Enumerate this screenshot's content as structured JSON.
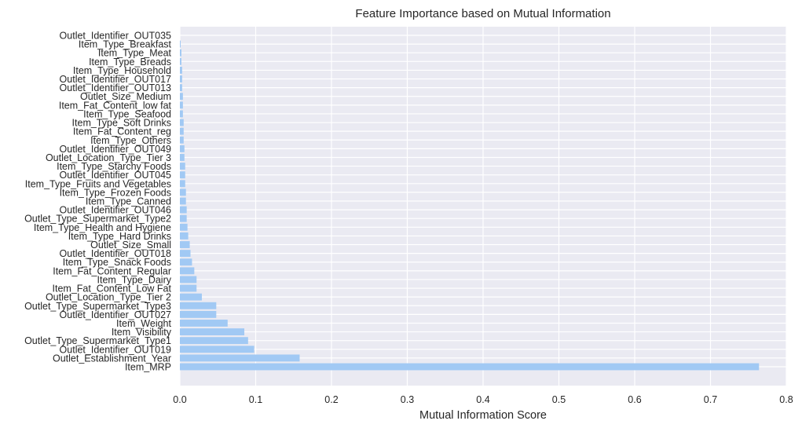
{
  "chart_data": {
    "type": "bar",
    "orientation": "horizontal",
    "title": "Feature Importance based on Mutual Information",
    "xlabel": "Mutual Information Score",
    "ylabel": "",
    "xlim": [
      0,
      0.8
    ],
    "xticks": [
      "0.0",
      "0.1",
      "0.2",
      "0.3",
      "0.4",
      "0.5",
      "0.6",
      "0.7",
      "0.8"
    ],
    "grid": true,
    "bar_color": "#a1c9f4",
    "background_color": "#eaeaf2",
    "grid_color": "#ffffff",
    "categories": [
      "Item_MRP",
      "Outlet_Establishment_Year",
      "Outlet_Identifier_OUT019",
      "Outlet_Type_Supermarket_Type1",
      "Item_Visibility",
      "Item_Weight",
      "Outlet_Identifier_OUT027",
      "Outlet_Type_Supermarket_Type3",
      "Outlet_Location_Type_Tier 2",
      "Item_Fat_Content_Low Fat",
      "Item_Type_Dairy",
      "Item_Fat_Content_Regular",
      "Item_Type_Snack Foods",
      "Outlet_Identifier_OUT018",
      "Outlet_Size_Small",
      "Item_Type_Hard Drinks",
      "Item_Type_Health and Hygiene",
      "Outlet_Type_Supermarket_Type2",
      "Outlet_Identifier_OUT046",
      "Item_Type_Canned",
      "Item_Type_Frozen Foods",
      "Item_Type_Fruits and Vegetables",
      "Outlet_Identifier_OUT045",
      "Item_Type_Starchy Foods",
      "Outlet_Location_Type_Tier 3",
      "Outlet_Identifier_OUT049",
      "Item_Type_Others",
      "Item_Fat_Content_reg",
      "Item_Type_Soft Drinks",
      "Item_Type_Seafood",
      "Item_Fat_Content_low fat",
      "Outlet_Size_Medium",
      "Outlet_Identifier_OUT013",
      "Outlet_Identifier_OUT017",
      "Item_Type_Household",
      "Item_Type_Breads",
      "Item_Type_Meat",
      "Item_Type_Breakfast",
      "Outlet_Identifier_OUT035"
    ],
    "values": [
      0.764,
      0.158,
      0.098,
      0.09,
      0.085,
      0.063,
      0.048,
      0.048,
      0.029,
      0.022,
      0.022,
      0.019,
      0.016,
      0.014,
      0.013,
      0.011,
      0.01,
      0.009,
      0.009,
      0.008,
      0.008,
      0.007,
      0.007,
      0.007,
      0.006,
      0.006,
      0.005,
      0.005,
      0.005,
      0.004,
      0.004,
      0.004,
      0.003,
      0.003,
      0.003,
      0.002,
      0.002,
      0.001,
      0.0
    ]
  }
}
